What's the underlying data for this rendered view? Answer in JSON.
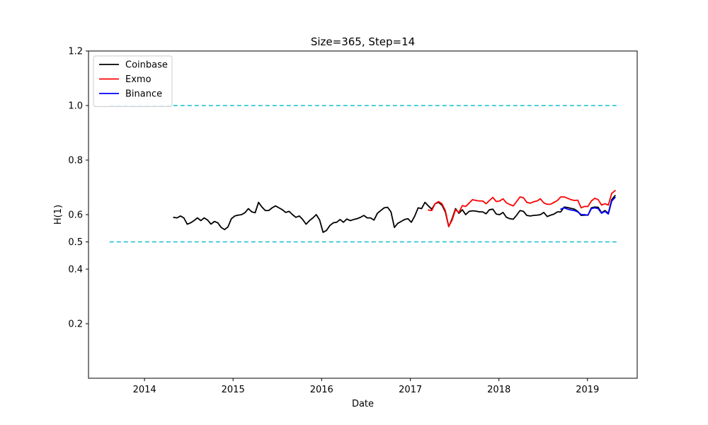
{
  "chart_data": {
    "type": "line",
    "title": "Size=365, Step=14",
    "xlabel": "Date",
    "ylabel": "H(1)",
    "xlim": [
      "2013-05-15",
      "2019-07-25"
    ],
    "ylim": [
      0.0,
      1.2
    ],
    "x_ticks": [
      "2014",
      "2015",
      "2016",
      "2017",
      "2018",
      "2019"
    ],
    "y_ticks": [
      "0.2",
      "0.4",
      "0.5",
      "0.6",
      "0.8",
      "1.0",
      "1.2"
    ],
    "grid": false,
    "legend_position": "top-left",
    "reference_lines": [
      {
        "y": 1.0,
        "x_start": "2013-08-10",
        "x_end": "2019-05-01",
        "style": "dashed",
        "color": "#17becf"
      },
      {
        "y": 0.5,
        "x_start": "2013-08-10",
        "x_end": "2019-05-01",
        "style": "dashed",
        "color": "#17becf"
      }
    ],
    "series": [
      {
        "name": "Coinbase",
        "color": "#000000",
        "points": [
          [
            "2014-05-01",
            0.59
          ],
          [
            "2014-05-15",
            0.588
          ],
          [
            "2014-05-29",
            0.595
          ],
          [
            "2014-06-12",
            0.588
          ],
          [
            "2014-06-26",
            0.565
          ],
          [
            "2014-07-10",
            0.57
          ],
          [
            "2014-07-24",
            0.578
          ],
          [
            "2014-08-07",
            0.588
          ],
          [
            "2014-08-21",
            0.578
          ],
          [
            "2014-09-04",
            0.588
          ],
          [
            "2014-09-18",
            0.58
          ],
          [
            "2014-10-02",
            0.565
          ],
          [
            "2014-10-16",
            0.575
          ],
          [
            "2014-10-30",
            0.57
          ],
          [
            "2014-11-13",
            0.553
          ],
          [
            "2014-11-27",
            0.545
          ],
          [
            "2014-12-11",
            0.555
          ],
          [
            "2014-12-25",
            0.585
          ],
          [
            "2015-01-08",
            0.595
          ],
          [
            "2015-01-22",
            0.598
          ],
          [
            "2015-02-05",
            0.6
          ],
          [
            "2015-02-19",
            0.607
          ],
          [
            "2015-03-05",
            0.622
          ],
          [
            "2015-03-19",
            0.61
          ],
          [
            "2015-04-02",
            0.607
          ],
          [
            "2015-04-16",
            0.645
          ],
          [
            "2015-04-30",
            0.628
          ],
          [
            "2015-05-14",
            0.615
          ],
          [
            "2015-05-28",
            0.615
          ],
          [
            "2015-06-11",
            0.625
          ],
          [
            "2015-06-25",
            0.632
          ],
          [
            "2015-07-09",
            0.625
          ],
          [
            "2015-07-23",
            0.618
          ],
          [
            "2015-08-06",
            0.608
          ],
          [
            "2015-08-20",
            0.612
          ],
          [
            "2015-09-03",
            0.6
          ],
          [
            "2015-09-17",
            0.59
          ],
          [
            "2015-10-01",
            0.595
          ],
          [
            "2015-10-15",
            0.582
          ],
          [
            "2015-10-29",
            0.565
          ],
          [
            "2015-11-12",
            0.578
          ],
          [
            "2015-11-26",
            0.588
          ],
          [
            "2015-12-10",
            0.6
          ],
          [
            "2015-12-24",
            0.58
          ],
          [
            "2016-01-07",
            0.535
          ],
          [
            "2016-01-21",
            0.542
          ],
          [
            "2016-02-04",
            0.56
          ],
          [
            "2016-02-18",
            0.57
          ],
          [
            "2016-03-03",
            0.572
          ],
          [
            "2016-03-17",
            0.582
          ],
          [
            "2016-03-31",
            0.572
          ],
          [
            "2016-04-14",
            0.584
          ],
          [
            "2016-04-28",
            0.578
          ],
          [
            "2016-05-12",
            0.582
          ],
          [
            "2016-05-26",
            0.585
          ],
          [
            "2016-06-09",
            0.59
          ],
          [
            "2016-06-23",
            0.597
          ],
          [
            "2016-07-07",
            0.588
          ],
          [
            "2016-07-21",
            0.588
          ],
          [
            "2016-08-04",
            0.58
          ],
          [
            "2016-08-18",
            0.605
          ],
          [
            "2016-09-01",
            0.615
          ],
          [
            "2016-09-15",
            0.625
          ],
          [
            "2016-09-29",
            0.627
          ],
          [
            "2016-10-13",
            0.61
          ],
          [
            "2016-10-27",
            0.553
          ],
          [
            "2016-11-10",
            0.568
          ],
          [
            "2016-11-24",
            0.575
          ],
          [
            "2016-12-08",
            0.582
          ],
          [
            "2016-12-22",
            0.585
          ],
          [
            "2017-01-05",
            0.572
          ],
          [
            "2017-01-19",
            0.595
          ],
          [
            "2017-02-02",
            0.625
          ],
          [
            "2017-02-16",
            0.622
          ],
          [
            "2017-03-02",
            0.645
          ],
          [
            "2017-03-16",
            0.632
          ],
          [
            "2017-03-30",
            0.62
          ],
          [
            "2017-04-13",
            0.64
          ],
          [
            "2017-04-27",
            0.645
          ],
          [
            "2017-05-11",
            0.635
          ],
          [
            "2017-05-25",
            0.61
          ],
          [
            "2017-06-08",
            0.556
          ],
          [
            "2017-06-22",
            0.585
          ],
          [
            "2017-07-06",
            0.622
          ],
          [
            "2017-07-20",
            0.605
          ],
          [
            "2017-08-03",
            0.618
          ],
          [
            "2017-08-17",
            0.6
          ],
          [
            "2017-08-31",
            0.612
          ],
          [
            "2017-09-14",
            0.614
          ],
          [
            "2017-09-28",
            0.613
          ],
          [
            "2017-10-12",
            0.61
          ],
          [
            "2017-10-26",
            0.61
          ],
          [
            "2017-11-09",
            0.603
          ],
          [
            "2017-11-23",
            0.618
          ],
          [
            "2017-12-07",
            0.62
          ],
          [
            "2017-12-21",
            0.602
          ],
          [
            "2018-01-04",
            0.6
          ],
          [
            "2018-01-18",
            0.608
          ],
          [
            "2018-02-01",
            0.59
          ],
          [
            "2018-02-15",
            0.585
          ],
          [
            "2018-03-01",
            0.583
          ],
          [
            "2018-03-15",
            0.598
          ],
          [
            "2018-03-29",
            0.615
          ],
          [
            "2018-04-12",
            0.612
          ],
          [
            "2018-04-26",
            0.597
          ],
          [
            "2018-05-10",
            0.595
          ],
          [
            "2018-05-24",
            0.597
          ],
          [
            "2018-06-07",
            0.598
          ],
          [
            "2018-06-21",
            0.6
          ],
          [
            "2018-07-05",
            0.608
          ],
          [
            "2018-07-19",
            0.593
          ],
          [
            "2018-08-02",
            0.598
          ],
          [
            "2018-08-16",
            0.602
          ],
          [
            "2018-08-30",
            0.61
          ],
          [
            "2018-09-13",
            0.61
          ],
          [
            "2018-09-27",
            0.628
          ],
          [
            "2018-10-11",
            0.626
          ],
          [
            "2018-10-25",
            0.623
          ],
          [
            "2018-11-08",
            0.62
          ],
          [
            "2018-11-22",
            0.612
          ],
          [
            "2018-12-06",
            0.597
          ],
          [
            "2018-12-20",
            0.598
          ],
          [
            "2019-01-03",
            0.598
          ],
          [
            "2019-01-17",
            0.625
          ],
          [
            "2019-01-31",
            0.628
          ],
          [
            "2019-02-14",
            0.627
          ],
          [
            "2019-02-28",
            0.607
          ],
          [
            "2019-03-14",
            0.615
          ],
          [
            "2019-03-28",
            0.605
          ],
          [
            "2019-04-11",
            0.655
          ],
          [
            "2019-04-25",
            0.67
          ]
        ]
      },
      {
        "name": "Exmo",
        "color": "#ff0000",
        "points": [
          [
            "2017-03-16",
            0.617
          ],
          [
            "2017-03-30",
            0.615
          ],
          [
            "2017-04-13",
            0.64
          ],
          [
            "2017-04-27",
            0.648
          ],
          [
            "2017-05-11",
            0.64
          ],
          [
            "2017-05-25",
            0.615
          ],
          [
            "2017-06-08",
            0.557
          ],
          [
            "2017-06-22",
            0.58
          ],
          [
            "2017-07-06",
            0.618
          ],
          [
            "2017-07-20",
            0.608
          ],
          [
            "2017-08-03",
            0.633
          ],
          [
            "2017-08-17",
            0.63
          ],
          [
            "2017-08-31",
            0.642
          ],
          [
            "2017-09-14",
            0.655
          ],
          [
            "2017-09-28",
            0.652
          ],
          [
            "2017-10-12",
            0.65
          ],
          [
            "2017-10-26",
            0.65
          ],
          [
            "2017-11-09",
            0.64
          ],
          [
            "2017-11-23",
            0.652
          ],
          [
            "2017-12-07",
            0.663
          ],
          [
            "2017-12-21",
            0.648
          ],
          [
            "2018-01-04",
            0.65
          ],
          [
            "2018-01-18",
            0.658
          ],
          [
            "2018-02-01",
            0.643
          ],
          [
            "2018-02-15",
            0.637
          ],
          [
            "2018-03-01",
            0.632
          ],
          [
            "2018-03-15",
            0.648
          ],
          [
            "2018-03-29",
            0.665
          ],
          [
            "2018-04-12",
            0.662
          ],
          [
            "2018-04-26",
            0.645
          ],
          [
            "2018-05-10",
            0.642
          ],
          [
            "2018-05-24",
            0.647
          ],
          [
            "2018-06-07",
            0.65
          ],
          [
            "2018-06-21",
            0.658
          ],
          [
            "2018-07-05",
            0.643
          ],
          [
            "2018-07-19",
            0.638
          ],
          [
            "2018-08-02",
            0.638
          ],
          [
            "2018-08-16",
            0.645
          ],
          [
            "2018-08-30",
            0.652
          ],
          [
            "2018-09-13",
            0.665
          ],
          [
            "2018-09-27",
            0.665
          ],
          [
            "2018-10-11",
            0.66
          ],
          [
            "2018-10-25",
            0.655
          ],
          [
            "2018-11-08",
            0.652
          ],
          [
            "2018-11-22",
            0.653
          ],
          [
            "2018-12-06",
            0.625
          ],
          [
            "2018-12-20",
            0.63
          ],
          [
            "2019-01-03",
            0.63
          ],
          [
            "2019-01-17",
            0.65
          ],
          [
            "2019-01-31",
            0.66
          ],
          [
            "2019-02-14",
            0.655
          ],
          [
            "2019-02-28",
            0.635
          ],
          [
            "2019-03-14",
            0.64
          ],
          [
            "2019-03-28",
            0.635
          ],
          [
            "2019-04-11",
            0.678
          ],
          [
            "2019-04-25",
            0.688
          ]
        ]
      },
      {
        "name": "Binance",
        "color": "#0000ff",
        "points": [
          [
            "2018-09-13",
            0.62
          ],
          [
            "2018-09-27",
            0.625
          ],
          [
            "2018-10-11",
            0.62
          ],
          [
            "2018-10-25",
            0.617
          ],
          [
            "2018-11-08",
            0.615
          ],
          [
            "2018-11-22",
            0.61
          ],
          [
            "2018-12-06",
            0.6
          ],
          [
            "2018-12-20",
            0.6
          ],
          [
            "2019-01-03",
            0.598
          ],
          [
            "2019-01-17",
            0.622
          ],
          [
            "2019-01-31",
            0.625
          ],
          [
            "2019-02-14",
            0.622
          ],
          [
            "2019-02-28",
            0.605
          ],
          [
            "2019-03-14",
            0.612
          ],
          [
            "2019-03-28",
            0.602
          ],
          [
            "2019-04-11",
            0.65
          ],
          [
            "2019-04-25",
            0.663
          ]
        ]
      }
    ]
  }
}
